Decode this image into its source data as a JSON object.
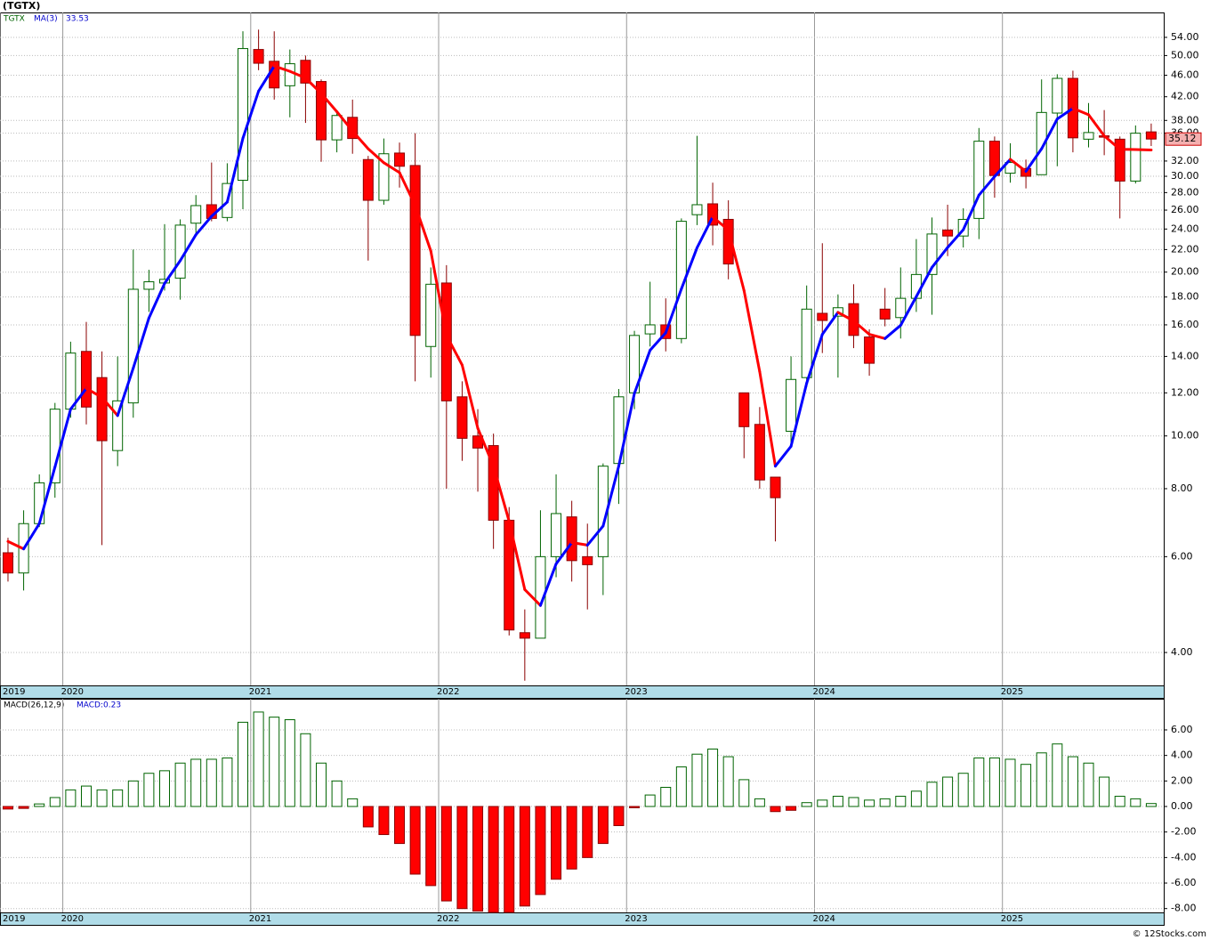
{
  "header": {
    "title": "(TGTX)"
  },
  "footer": "© 12Stocks.com",
  "xlim": [
    -0.51,
    73.8
  ],
  "xticks": [
    {
      "value": -0.5,
      "label": "2019"
    },
    {
      "value": 3.5,
      "label": "2020"
    },
    {
      "value": 15.5,
      "label": "2021"
    },
    {
      "value": 27.5,
      "label": "2022"
    },
    {
      "value": 39.5,
      "label": "2023"
    },
    {
      "value": 51.5,
      "label": "2024"
    },
    {
      "value": 63.5,
      "label": "2025"
    }
  ],
  "chart_data": [
    {
      "type": "candlestick",
      "symbol": "TGTX",
      "log_scale": true,
      "grid": true,
      "up_fill": "#ffffff",
      "up_stroke": "#006400",
      "down_fill": "#ff0000",
      "down_stroke": "#8b0000",
      "open": [
        6.1,
        5.6,
        6.9,
        8.2,
        11.2,
        14.3,
        12.8,
        9.4,
        11.5,
        18.6,
        19.1,
        19.5,
        24.6,
        26.6,
        25.2,
        29.5,
        51.3,
        48.8,
        44,
        49,
        44.8,
        35,
        38.5,
        32.2,
        27.1,
        33.1,
        31.4,
        14.6,
        19.1,
        11.8,
        10,
        9.6,
        7.0,
        4.35,
        4.25,
        6.0,
        7.1,
        6.0,
        6.0,
        8.9,
        12,
        15.4,
        16,
        15.1,
        25.5,
        26.7,
        25,
        12,
        10.5,
        8.4,
        10.2,
        12.8,
        16.8,
        16.6,
        17.5,
        15.2,
        17.1,
        16.5,
        17.9,
        19.8,
        23.9,
        23.3,
        25.1,
        34.8,
        30.4,
        31,
        30.2,
        39.2,
        45.4,
        35.1,
        35.6,
        35.1,
        29.4,
        36.2
      ],
      "high": [
        6.5,
        7.3,
        8.5,
        11.5,
        14.9,
        16.2,
        14.3,
        14.0,
        22,
        20.2,
        24.5,
        25,
        27.7,
        31.8,
        31.7,
        55.4,
        55.8,
        55.4,
        51.3,
        50,
        45.2,
        39.6,
        41.5,
        32.7,
        35.2,
        34.6,
        36,
        20.4,
        20.6,
        12.6,
        11.2,
        10.1,
        7.4,
        4.8,
        7.3,
        8.5,
        7.6,
        6.9,
        8.9,
        12.2,
        15.6,
        19.2,
        17.9,
        25.1,
        35.6,
        29.2,
        27.1,
        12,
        11.3,
        8.4,
        14,
        18.9,
        22.6,
        18.2,
        19,
        15.7,
        18.7,
        20.4,
        23,
        25.2,
        26.6,
        26.2,
        36.8,
        35.5,
        34.5,
        32.2,
        45.2,
        46.2,
        46.9,
        40.9,
        39.7,
        35.5,
        37.2,
        37.5
      ],
      "low": [
        5.4,
        5.2,
        6.8,
        7.7,
        10.8,
        10.5,
        6.3,
        8.8,
        10.8,
        16.9,
        18.5,
        17.8,
        23.5,
        24.8,
        24.8,
        26.1,
        47,
        41.5,
        38.5,
        37.6,
        31.9,
        33.2,
        33,
        21,
        26.6,
        28.6,
        12.6,
        12.8,
        8.0,
        9.0,
        7.9,
        6.2,
        4.3,
        3.55,
        4.25,
        5.5,
        5.4,
        4.8,
        5.1,
        7.5,
        11.2,
        14.6,
        14.3,
        14.8,
        24.4,
        22.4,
        19.4,
        9.1,
        8.0,
        6.4,
        9.5,
        12.3,
        14.2,
        12.8,
        14.5,
        12.9,
        15.9,
        15.1,
        16.9,
        16.7,
        21.4,
        22.2,
        23,
        27.4,
        29.2,
        28.5,
        30.2,
        31.3,
        33.2,
        33.9,
        32.8,
        25.1,
        29.1,
        34.1
      ],
      "close": [
        5.6,
        6.9,
        8.2,
        11.2,
        14.2,
        11.3,
        9.8,
        11.6,
        18.6,
        19.2,
        19.4,
        24.4,
        26.5,
        25.1,
        29.1,
        51.5,
        48.4,
        43.6,
        48.3,
        44.5,
        35,
        38.8,
        35.2,
        27.1,
        33,
        31.3,
        15.3,
        19,
        11.6,
        9.9,
        9.5,
        7.0,
        4.4,
        4.25,
        6.0,
        7.2,
        5.9,
        5.8,
        8.8,
        11.8,
        15.3,
        16,
        15.1,
        24.8,
        26.6,
        24.4,
        20.7,
        10.4,
        8.3,
        7.7,
        12.7,
        17.1,
        16.3,
        17.2,
        15.3,
        13.6,
        16.4,
        17.9,
        19.8,
        23.5,
        23.3,
        25,
        34.8,
        30.1,
        31.8,
        30,
        39.3,
        45.4,
        35.3,
        36.1,
        35.4,
        29.4,
        36,
        35.12
      ],
      "ma": {
        "name": "MA(3)",
        "up_color": "#0000ff",
        "down_color": "#ff0000",
        "values": [
          6.4,
          6.2,
          6.9,
          8.77,
          11.2,
          12.23,
          11.77,
          10.9,
          13.33,
          16.47,
          19.07,
          21,
          23.43,
          25.33,
          26.9,
          35.23,
          43,
          47.83,
          46.77,
          45.47,
          42.6,
          39.43,
          36.33,
          33.7,
          31.77,
          30.47,
          26.53,
          21.87,
          15.3,
          13.5,
          10.33,
          8.8,
          6.97,
          5.22,
          4.88,
          5.82,
          6.37,
          6.3,
          6.83,
          8.8,
          11.97,
          14.37,
          15.47,
          18.63,
          22.17,
          25.27,
          23.9,
          18.5,
          13.13,
          8.8,
          9.57,
          12.5,
          15.37,
          16.87,
          16.27,
          15.37,
          15.1,
          15.97,
          18.03,
          20.4,
          22.2,
          23.93,
          27.7,
          29.97,
          32.23,
          30.63,
          33.7,
          38.23,
          40,
          38.93,
          35.6,
          33.63,
          33.6,
          33.53
        ]
      },
      "ylim": [
        3.48,
        60
      ],
      "yticks": [
        {
          "value": 4,
          "label": "4.00"
        },
        {
          "value": 6,
          "label": "6.00"
        },
        {
          "value": 8,
          "label": "8.00"
        },
        {
          "value": 10,
          "label": "10.00"
        },
        {
          "value": 12,
          "label": "12.00"
        },
        {
          "value": 14,
          "label": "14.00"
        },
        {
          "value": 16,
          "label": "16.00"
        },
        {
          "value": 18,
          "label": "18.00"
        },
        {
          "value": 20,
          "label": "20.00"
        },
        {
          "value": 22,
          "label": "22.00"
        },
        {
          "value": 24,
          "label": "24.00"
        },
        {
          "value": 26,
          "label": "26.00"
        },
        {
          "value": 28,
          "label": "28.00"
        },
        {
          "value": 30,
          "label": "30.00"
        },
        {
          "value": 32,
          "label": "32.00"
        },
        {
          "value": 36,
          "label": "36.00"
        },
        {
          "value": 38,
          "label": "38.00"
        },
        {
          "value": 42,
          "label": "42.00"
        },
        {
          "value": 46,
          "label": "46.00"
        },
        {
          "value": 50,
          "label": "50.00"
        },
        {
          "value": 54,
          "label": "54.00"
        }
      ]
    },
    {
      "type": "bar",
      "title": "MACD(26,12,9)",
      "current_label": "MACD:0.23",
      "grid": true,
      "pos_fill": "#ffffff",
      "pos_stroke": "#006400",
      "neg_fill": "#ff0000",
      "neg_stroke": "#8b0000",
      "values": [
        -0.2,
        -0.15,
        0.2,
        0.7,
        1.3,
        1.6,
        1.3,
        1.3,
        2.0,
        2.6,
        2.8,
        3.4,
        3.7,
        3.7,
        3.8,
        6.6,
        7.4,
        7.0,
        6.8,
        5.7,
        3.4,
        2.0,
        0.6,
        -1.6,
        -2.2,
        -2.9,
        -5.3,
        -6.2,
        -7.4,
        -8.0,
        -8.2,
        -8.3,
        -8.3,
        -7.8,
        -6.9,
        -5.7,
        -4.9,
        -4.0,
        -2.9,
        -1.5,
        -0.1,
        0.9,
        1.5,
        3.1,
        4.1,
        4.5,
        3.9,
        2.1,
        0.6,
        -0.4,
        -0.3,
        0.3,
        0.5,
        0.8,
        0.7,
        0.5,
        0.6,
        0.8,
        1.2,
        1.9,
        2.3,
        2.6,
        3.8,
        3.8,
        3.7,
        3.3,
        4.2,
        4.9,
        3.9,
        3.4,
        2.3,
        0.8,
        0.6,
        0.23
      ],
      "ylim": [
        -8.3,
        8.44
      ],
      "yticks": [
        {
          "value": -8,
          "label": "-8.00"
        },
        {
          "value": -6,
          "label": "-6.00"
        },
        {
          "value": -4,
          "label": "-4.00"
        },
        {
          "value": -2,
          "label": "-2.00"
        },
        {
          "value": 0,
          "label": "0.00"
        },
        {
          "value": 2,
          "label": "2.00"
        },
        {
          "value": 4,
          "label": "4.00"
        },
        {
          "value": 6,
          "label": "6.00"
        }
      ]
    }
  ]
}
